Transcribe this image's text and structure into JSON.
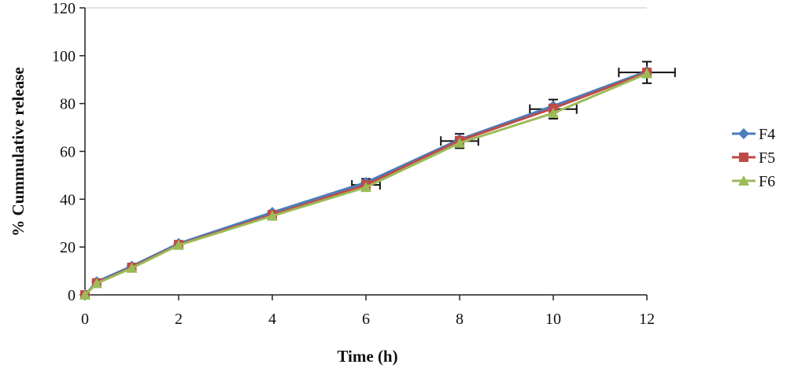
{
  "chart_data": {
    "type": "line",
    "title": "",
    "xlabel": "Time (h)",
    "ylabel": "% Cummulative release",
    "xlim": [
      0,
      12
    ],
    "ylim": [
      0,
      120
    ],
    "xticks": [
      "0",
      "2",
      "4",
      "6",
      "8",
      "10",
      "12"
    ],
    "yticks": [
      "0",
      "20",
      "40",
      "60",
      "80",
      "100",
      "120"
    ],
    "x": [
      0,
      0.25,
      1,
      2,
      4,
      6,
      8,
      10,
      12
    ],
    "grid": "horizontal at y=120 only",
    "legend_position": "right",
    "series": [
      {
        "name": "F4",
        "color": "#4a7ebb",
        "marker": "diamond",
        "values": [
          0,
          5.5,
          12,
          21.5,
          34.5,
          47,
          65,
          79,
          93.5
        ]
      },
      {
        "name": "F5",
        "color": "#be4b48",
        "marker": "square",
        "values": [
          0,
          5,
          11.5,
          21,
          33.5,
          46,
          64.5,
          78,
          93
        ]
      },
      {
        "name": "F6",
        "color": "#9bbb59",
        "marker": "triangle",
        "values": [
          0,
          4.8,
          11.2,
          20.8,
          33,
          45,
          63.5,
          76,
          92.5
        ]
      }
    ],
    "error_bars": {
      "y_err": [
        0,
        1,
        1,
        1,
        1.5,
        2.5,
        3,
        4,
        4.5
      ],
      "x_err": [
        0,
        0,
        0,
        0,
        0,
        0.3,
        0.4,
        0.5,
        0.6
      ]
    }
  }
}
